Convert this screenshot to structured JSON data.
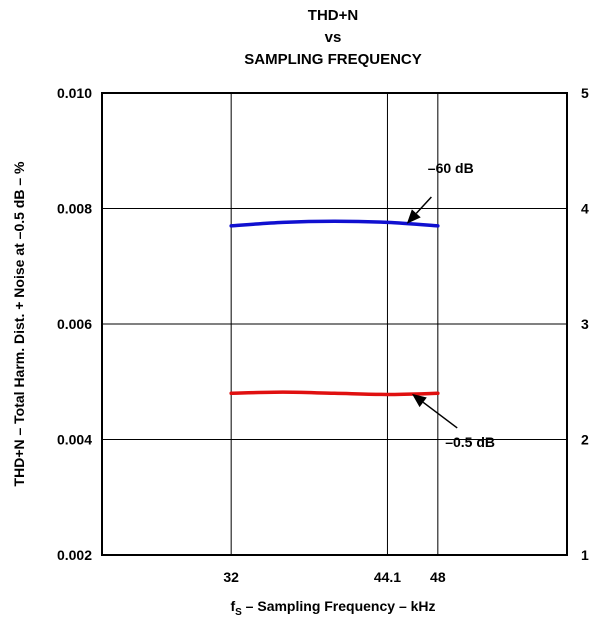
{
  "chart_data": {
    "type": "line",
    "title": [
      "THD+N",
      "vs",
      "SAMPLING FREQUENCY"
    ],
    "xlabel": {
      "main": "f",
      "sub": "S",
      "rest": " – Sampling Frequency – kHz"
    },
    "ylabel": "THD+N – Total Harm. Dist. + Noise at –0.5 dB – %",
    "x_ticks": [
      {
        "label": "32",
        "value": 32
      },
      {
        "label": "44.1",
        "value": 44.1
      },
      {
        "label": "48",
        "value": 48
      }
    ],
    "xlim": [
      22,
      58
    ],
    "y_ticks": [
      "0.002",
      "0.004",
      "0.006",
      "0.008",
      "0.010"
    ],
    "ylim": [
      0.002,
      0.01
    ],
    "y2_ticks": [
      "1",
      "2",
      "3",
      "4",
      "5"
    ],
    "y2lim": [
      1,
      5
    ],
    "grid": true,
    "series": [
      {
        "name": "–60 dB",
        "color": "#1010d0",
        "axis": "right",
        "x": [
          32,
          36,
          40,
          44.1,
          48
        ],
        "y": [
          3.85,
          3.88,
          3.89,
          3.88,
          3.85
        ]
      },
      {
        "name": "–0.5 dB",
        "color": "#e01010",
        "axis": "right",
        "x": [
          32,
          36,
          40,
          44.1,
          48
        ],
        "y": [
          2.4,
          2.41,
          2.4,
          2.39,
          2.4
        ]
      }
    ],
    "annotations": [
      {
        "text": "–60 dB",
        "series": 0,
        "x": 45.6,
        "label_x": 49.0,
        "label_y": 4.35,
        "arrow_from": [
          47.5,
          4.1
        ]
      },
      {
        "text": "–0.5 dB",
        "series": 1,
        "x": 46.0,
        "label_x": 50.5,
        "label_y": 1.98,
        "arrow_from": [
          49.5,
          2.1
        ]
      }
    ]
  }
}
